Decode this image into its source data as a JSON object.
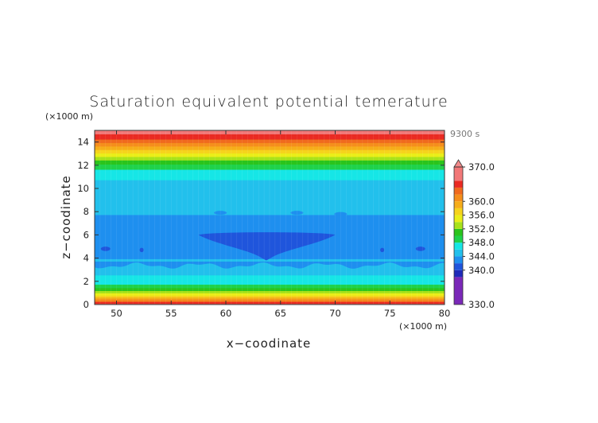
{
  "chart_data": {
    "type": "heatmap",
    "title": "Saturation equivalent potential temerature",
    "xlabel": "x−coodinate",
    "ylabel": "z−coodinate",
    "x_unit": "(×1000 m)",
    "y_unit": "(×1000 m)",
    "time_label": "9300 s",
    "xlim": [
      48,
      80
    ],
    "ylim": [
      0,
      15
    ],
    "x_ticks": [
      50,
      55,
      60,
      65,
      70,
      75,
      80
    ],
    "x_tick_labels": [
      "50",
      "55",
      "60",
      "65",
      "70",
      "75",
      "80"
    ],
    "y_ticks": [
      0,
      2,
      4,
      6,
      8,
      10,
      12,
      14
    ],
    "y_tick_labels": [
      "0",
      "2",
      "4",
      "6",
      "8",
      "10",
      "12",
      "14"
    ],
    "grid": false,
    "colorbar": {
      "bounds": [
        330,
        338,
        340,
        342,
        344,
        346,
        348,
        350,
        352,
        354,
        356,
        358,
        360,
        362,
        364,
        366,
        370
      ],
      "colors": [
        "#7a28b8",
        "#1e2ab8",
        "#1f55dc",
        "#1e8fef",
        "#22c0ec",
        "#16e6e6",
        "#1fd24a",
        "#2ac41c",
        "#a8e21a",
        "#eaee18",
        "#f6d31c",
        "#f6ad1a",
        "#f58e1c",
        "#f06a1e",
        "#ea2a22",
        "#f27878"
      ],
      "labels": [
        {
          "value": 370,
          "text": "370.0"
        },
        {
          "value": 360,
          "text": "360.0"
        },
        {
          "value": 356,
          "text": "356.0"
        },
        {
          "value": 352,
          "text": "352.0"
        },
        {
          "value": 348,
          "text": "348.0"
        },
        {
          "value": 344,
          "text": "344.0"
        },
        {
          "value": 340,
          "text": "340.0"
        },
        {
          "value": 330,
          "text": "330.0"
        }
      ],
      "extend": "max"
    },
    "field_profile": [
      {
        "z": 0.0,
        "value": 367
      },
      {
        "z": 0.2,
        "value": 364
      },
      {
        "z": 0.45,
        "value": 360
      },
      {
        "z": 0.7,
        "value": 357
      },
      {
        "z": 0.95,
        "value": 354
      },
      {
        "z": 1.25,
        "value": 351
      },
      {
        "z": 1.55,
        "value": 349
      },
      {
        "z": 1.8,
        "value": 347.5
      },
      {
        "z": 2.2,
        "value": 346.5
      },
      {
        "z": 2.8,
        "value": 345.5
      },
      {
        "z": 3.3,
        "value": 344.6
      },
      {
        "z": 5.0,
        "value": 343.0
      },
      {
        "z": 7.3,
        "value": 343.0
      },
      {
        "z": 8.0,
        "value": 344.6
      },
      {
        "z": 10.5,
        "value": 345.5
      },
      {
        "z": 11.0,
        "value": 346.5
      },
      {
        "z": 11.5,
        "value": 347.5
      },
      {
        "z": 11.9,
        "value": 349
      },
      {
        "z": 12.3,
        "value": 351
      },
      {
        "z": 12.6,
        "value": 353
      },
      {
        "z": 12.9,
        "value": 355
      },
      {
        "z": 13.2,
        "value": 357
      },
      {
        "z": 13.5,
        "value": 359
      },
      {
        "z": 13.8,
        "value": 361
      },
      {
        "z": 14.1,
        "value": 363
      },
      {
        "z": 14.4,
        "value": 365
      },
      {
        "z": 15.0,
        "value": 367
      }
    ],
    "anomaly": {
      "description_value": 341,
      "x_range": [
        57.5,
        70
      ],
      "z_top": 6.3,
      "z_bottom_center": 3.8,
      "x_center": 63.7
    }
  }
}
